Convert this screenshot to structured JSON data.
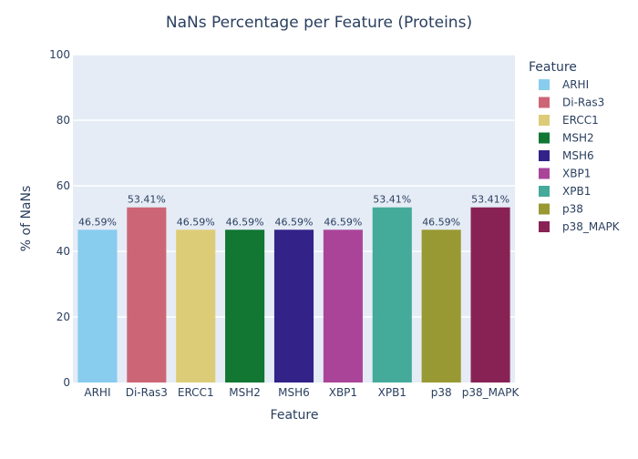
{
  "chart_data": {
    "type": "bar",
    "title": "NaNs Percentage per Feature (Proteins)",
    "xlabel": "Feature",
    "ylabel": "% of NaNs",
    "ylim": [
      0,
      100
    ],
    "yticks": [
      0,
      20,
      40,
      60,
      80,
      100
    ],
    "grid": true,
    "legend_position": "right",
    "legend_title": "Feature",
    "categories": [
      "ARHI",
      "Di-Ras3",
      "ERCC1",
      "MSH2",
      "MSH6",
      "XBP1",
      "XPB1",
      "p38",
      "p38_MAPK"
    ],
    "values": [
      46.59,
      53.41,
      46.59,
      46.59,
      46.59,
      46.59,
      53.41,
      46.59,
      53.41
    ],
    "data_labels": [
      "46.59%",
      "53.41%",
      "46.59%",
      "46.59%",
      "46.59%",
      "46.59%",
      "53.41%",
      "46.59%",
      "53.41%"
    ],
    "colors": [
      "#88CCEE",
      "#CC6677",
      "#DDCC77",
      "#117733",
      "#332288",
      "#AA4499",
      "#44AA99",
      "#999933",
      "#882255"
    ],
    "style": {
      "plot_background": "#E5ECF6",
      "gridline_color": "#ffffff",
      "text_color": "#2a3f5f"
    }
  }
}
